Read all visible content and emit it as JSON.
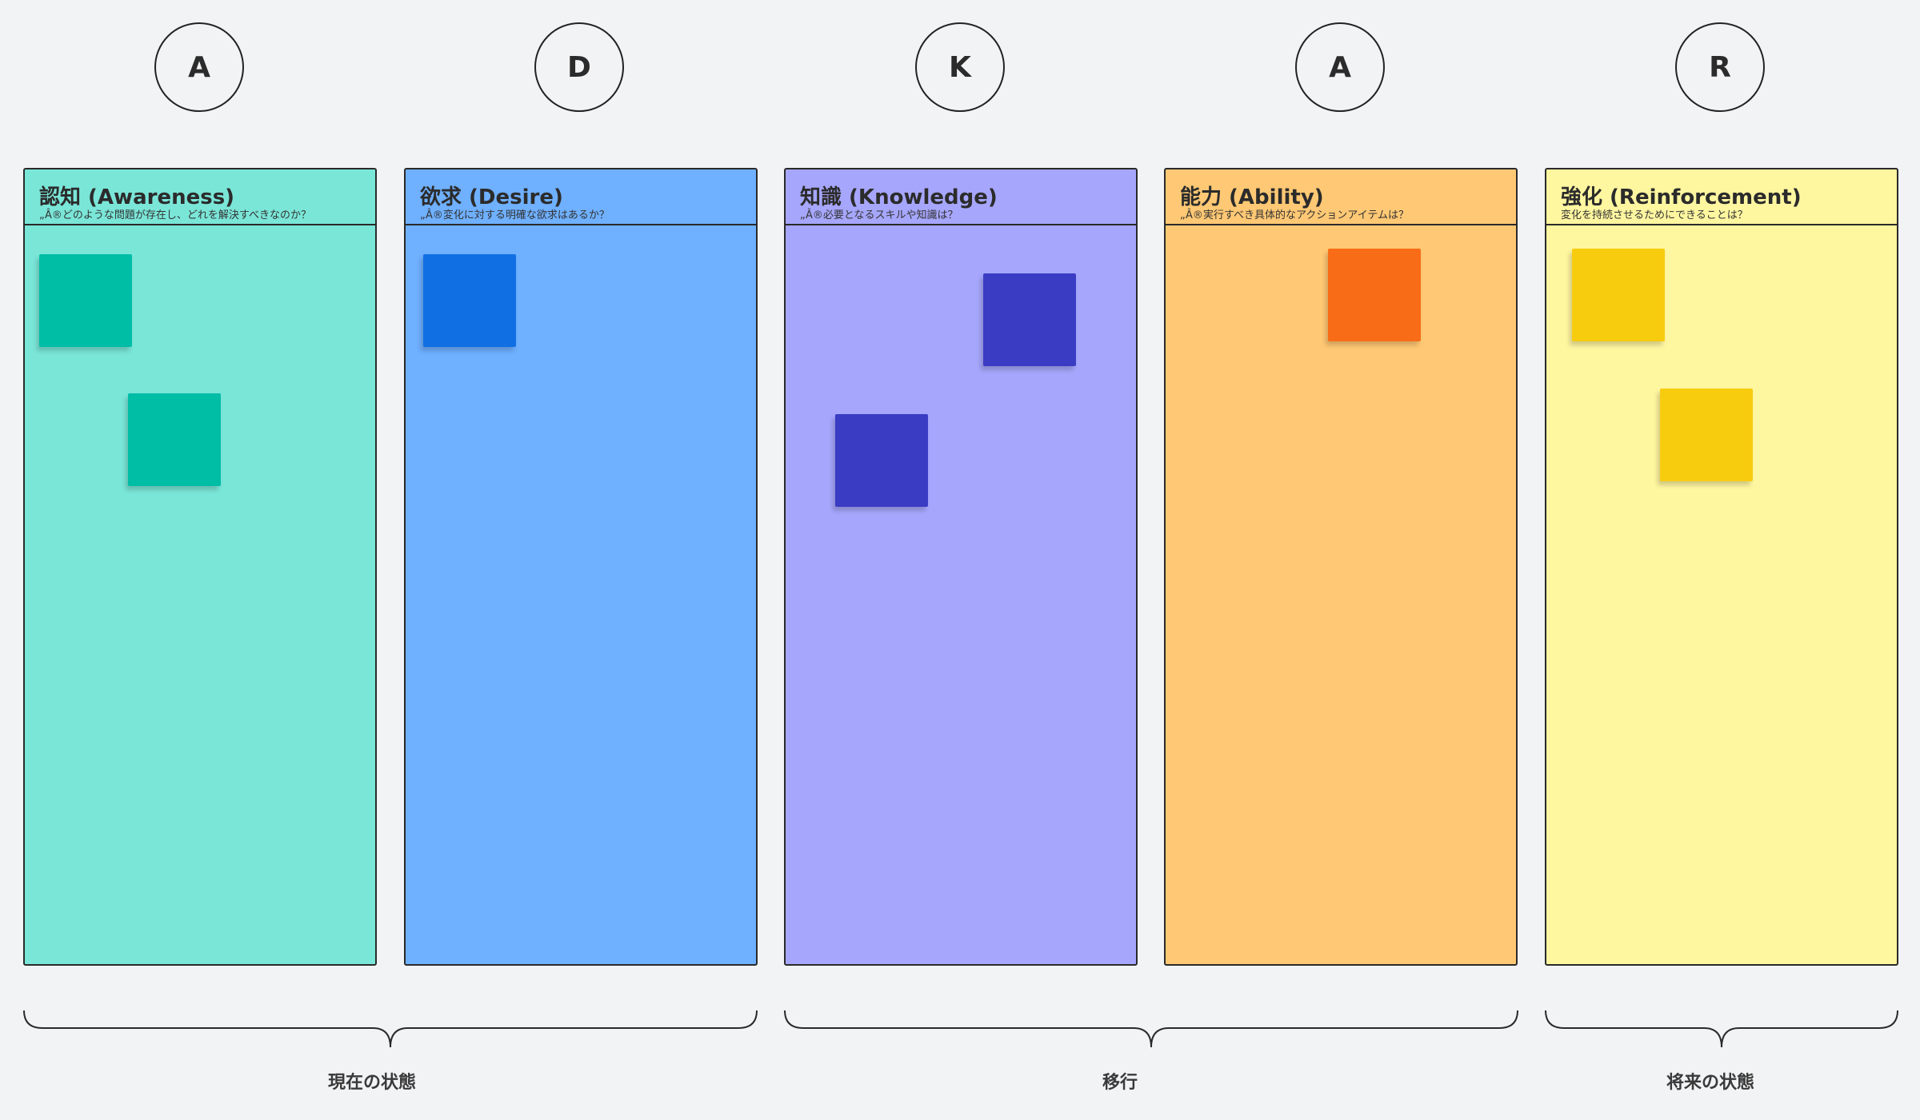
{
  "circles": [
    "A",
    "D",
    "K",
    "A",
    "R"
  ],
  "columns": [
    {
      "title": "認知 (Awareness)",
      "subtitle": "„Â®どのような問題が存在し、どれを解決すべきなのか？",
      "bg": "#7ae6d8",
      "sticky_color": "#00bda6"
    },
    {
      "title": "欲求 (Desire)",
      "subtitle": "„Â®変化に対する明確な欲求はあるか？",
      "bg": "#6fb0ff",
      "sticky_color": "#106fe3"
    },
    {
      "title": "知識 (Knowledge)",
      "subtitle": "„Â®必要となるスキルや知識は？",
      "bg": "#a6a6fc",
      "sticky_color": "#3b3cc4"
    },
    {
      "title": "能力 (Ability)",
      "subtitle": "„Â®実行すべき具体的なアクションアイテムは？",
      "bg": "#ffc874",
      "sticky_color": "#f86c17"
    },
    {
      "title": "強化 (Reinforcement)",
      "subtitle": "変化を持続させるためにできることは？",
      "bg": "#fff6a0",
      "sticky_color": "#f8cc0e"
    }
  ],
  "phases": [
    "現在の状態",
    "移行",
    "将来の状態"
  ],
  "colors": {
    "background": "#f2f3f5",
    "border": "#2a2a2a"
  }
}
